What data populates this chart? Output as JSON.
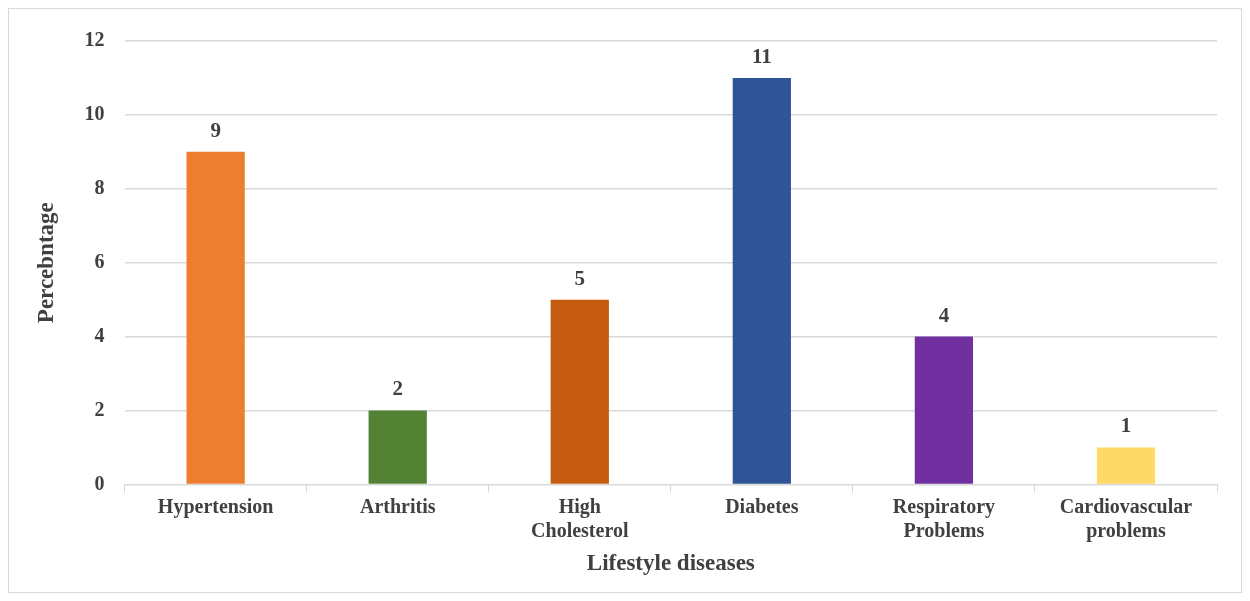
{
  "chart_data": {
    "type": "bar",
    "xlabel": "Lifestyle diseases",
    "ylabel": "Percebntage",
    "categories": [
      "Hypertension",
      "Arthritis",
      "High Cholesterol",
      "Diabetes",
      "Respiratory Problems",
      "Cardiovascular problems"
    ],
    "values": [
      9,
      2,
      5,
      11,
      4,
      1
    ],
    "colors": [
      "#ed7d31",
      "#548235",
      "#c55a11",
      "#2f5597",
      "#7030a0",
      "#ffd966"
    ],
    "ylim": [
      0,
      12
    ],
    "yticks": [
      0,
      2,
      4,
      6,
      8,
      10,
      12
    ],
    "grid": "y",
    "legend": false,
    "data_labels": true
  }
}
